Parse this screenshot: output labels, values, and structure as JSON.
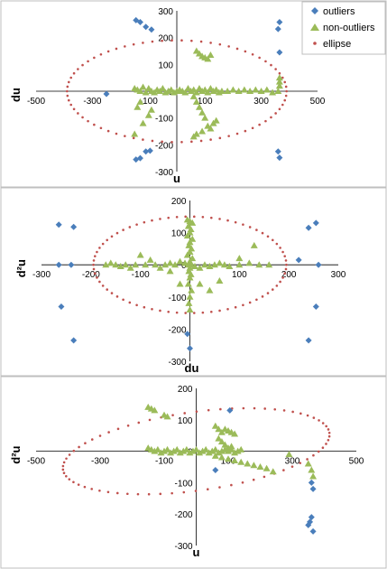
{
  "colors": {
    "outliers": "#4a7ebb",
    "non_outliers": "#9bbb59",
    "ellipse": "#c0504d",
    "axis": "#000000",
    "panel_border": "#bfbfbf"
  },
  "legend": {
    "position": "top-right",
    "items": [
      {
        "label": "outliers",
        "marker": "diamond",
        "color": "#4a7ebb"
      },
      {
        "label": "non-outliers",
        "marker": "triangle",
        "color": "#9bbb59"
      },
      {
        "label": "ellipse",
        "marker": "dot",
        "color": "#c0504d"
      }
    ]
  },
  "chart_data": [
    {
      "type": "scatter",
      "xlabel": "u",
      "ylabel": "du",
      "xlim": [
        -500,
        500
      ],
      "ylim": [
        -300,
        300
      ],
      "xticks": [
        "-500",
        "-300",
        "-100",
        "100",
        "300",
        "500"
      ],
      "yticks": [
        "300",
        "200",
        "100",
        "0",
        "-100",
        "-200",
        "-300"
      ],
      "grid": false,
      "ellipse": {
        "cx": 0,
        "cy": 0,
        "rx": 390,
        "ry": 190
      },
      "series": [
        {
          "name": "outliers",
          "marker": "diamond",
          "points": [
            [
              -145,
              265
            ],
            [
              -130,
              258
            ],
            [
              -110,
              240
            ],
            [
              -90,
              230
            ],
            [
              365,
              258
            ],
            [
              360,
              232
            ],
            [
              -145,
              -255
            ],
            [
              -130,
              -250
            ],
            [
              -110,
              -225
            ],
            [
              -95,
              -222
            ],
            [
              360,
              -225
            ],
            [
              365,
              -248
            ],
            [
              365,
              145
            ],
            [
              -250,
              -10
            ]
          ]
        },
        {
          "name": "non-outliers",
          "marker": "triangle",
          "points": [
            [
              -150,
              10
            ],
            [
              -140,
              5
            ],
            [
              -130,
              0
            ],
            [
              -120,
              15
            ],
            [
              -110,
              -5
            ],
            [
              -100,
              10
            ],
            [
              -90,
              0
            ],
            [
              -80,
              -5
            ],
            [
              -70,
              5
            ],
            [
              -60,
              0
            ],
            [
              -50,
              10
            ],
            [
              -40,
              -5
            ],
            [
              -30,
              0
            ],
            [
              -20,
              5
            ],
            [
              -10,
              -5
            ],
            [
              0,
              0
            ],
            [
              10,
              5
            ],
            [
              20,
              0
            ],
            [
              30,
              -5
            ],
            [
              40,
              10
            ],
            [
              50,
              0
            ],
            [
              60,
              5
            ],
            [
              70,
              -5
            ],
            [
              80,
              10
            ],
            [
              90,
              0
            ],
            [
              100,
              5
            ],
            [
              110,
              -5
            ],
            [
              120,
              10
            ],
            [
              130,
              0
            ],
            [
              140,
              5
            ],
            [
              150,
              -5
            ],
            [
              160,
              0
            ],
            [
              180,
              0
            ],
            [
              200,
              5
            ],
            [
              220,
              0
            ],
            [
              240,
              5
            ],
            [
              260,
              0
            ],
            [
              280,
              5
            ],
            [
              300,
              0
            ],
            [
              320,
              5
            ],
            [
              340,
              -5
            ],
            [
              360,
              0
            ],
            [
              365,
              20
            ],
            [
              365,
              35
            ],
            [
              365,
              50
            ],
            [
              70,
              150
            ],
            [
              80,
              140
            ],
            [
              90,
              130
            ],
            [
              100,
              125
            ],
            [
              110,
              120
            ],
            [
              120,
              135
            ],
            [
              60,
              -20
            ],
            [
              70,
              -40
            ],
            [
              80,
              -60
            ],
            [
              90,
              -80
            ],
            [
              100,
              -100
            ],
            [
              110,
              -130
            ],
            [
              120,
              -140
            ],
            [
              130,
              -120
            ],
            [
              140,
              -110
            ],
            [
              90,
              -150
            ],
            [
              70,
              -160
            ],
            [
              60,
              -170
            ],
            [
              -150,
              -160
            ],
            [
              -120,
              -120
            ],
            [
              -100,
              -90
            ],
            [
              -90,
              -70
            ],
            [
              -140,
              -60
            ],
            [
              -130,
              -40
            ]
          ]
        }
      ]
    },
    {
      "type": "scatter",
      "xlabel": "du",
      "ylabel": "d²u",
      "xlim": [
        -300,
        300
      ],
      "ylim": [
        -300,
        200
      ],
      "xticks": [
        "-300",
        "-200",
        "-100",
        "100",
        "200",
        "300"
      ],
      "yticks": [
        "200",
        "100",
        "0",
        "-100",
        "-200",
        "-300"
      ],
      "grid": false,
      "ellipse": {
        "cx": 0,
        "cy": 0,
        "rx": 195,
        "ry": 150
      },
      "series": [
        {
          "name": "outliers",
          "marker": "diamond",
          "points": [
            [
              -265,
              125
            ],
            [
              -235,
              118
            ],
            [
              -265,
              0
            ],
            [
              -240,
              0
            ],
            [
              -260,
              -130
            ],
            [
              -235,
              -235
            ],
            [
              -5,
              -215
            ],
            [
              0,
              -260
            ],
            [
              240,
              115
            ],
            [
              255,
              130
            ],
            [
              220,
              15
            ],
            [
              260,
              0
            ],
            [
              255,
              -130
            ],
            [
              240,
              -235
            ]
          ]
        },
        {
          "name": "non-outliers",
          "marker": "triangle",
          "points": [
            [
              -5,
              140
            ],
            [
              0,
              135
            ],
            [
              5,
              130
            ],
            [
              -3,
              120
            ],
            [
              2,
              110
            ],
            [
              0,
              100
            ],
            [
              -5,
              90
            ],
            [
              5,
              80
            ],
            [
              0,
              70
            ],
            [
              -2,
              60
            ],
            [
              3,
              50
            ],
            [
              0,
              40
            ],
            [
              -5,
              30
            ],
            [
              5,
              20
            ],
            [
              0,
              10
            ],
            [
              -3,
              0
            ],
            [
              3,
              0
            ],
            [
              0,
              -10
            ],
            [
              -2,
              -20
            ],
            [
              2,
              -30
            ],
            [
              0,
              -40
            ],
            [
              -3,
              -60
            ],
            [
              3,
              -80
            ],
            [
              0,
              -100
            ],
            [
              -2,
              -120
            ],
            [
              0,
              -140
            ],
            [
              -10,
              5
            ],
            [
              10,
              -5
            ],
            [
              -20,
              10
            ],
            [
              20,
              -10
            ],
            [
              -30,
              0
            ],
            [
              30,
              0
            ],
            [
              -40,
              5
            ],
            [
              40,
              -5
            ],
            [
              -50,
              0
            ],
            [
              50,
              0
            ],
            [
              60,
              5
            ],
            [
              70,
              0
            ],
            [
              80,
              -5
            ],
            [
              100,
              0
            ],
            [
              120,
              5
            ],
            [
              140,
              0
            ],
            [
              160,
              0
            ],
            [
              -70,
              0
            ],
            [
              -90,
              0
            ],
            [
              -110,
              0
            ],
            [
              -130,
              0
            ],
            [
              -150,
              0
            ],
            [
              -170,
              0
            ],
            [
              -160,
              5
            ],
            [
              -140,
              -5
            ],
            [
              -120,
              -10
            ],
            [
              -100,
              30
            ],
            [
              -80,
              15
            ],
            [
              -60,
              -10
            ],
            [
              130,
              60
            ],
            [
              100,
              20
            ],
            [
              60,
              -50
            ],
            [
              40,
              -80
            ],
            [
              20,
              -60
            ],
            [
              -20,
              -60
            ],
            [
              -40,
              -20
            ]
          ]
        }
      ]
    },
    {
      "type": "scatter",
      "xlabel": "u",
      "ylabel": "d²u",
      "xlim": [
        -500,
        500
      ],
      "ylim": [
        -300,
        200
      ],
      "xticks": [
        "-500",
        "-300",
        "-100",
        "100",
        "300",
        "500"
      ],
      "yticks": [
        "200",
        "100",
        "0",
        "-100",
        "-200",
        "-300"
      ],
      "grid": false,
      "ellipse": {
        "cx": 0,
        "cy": 0,
        "rx": 420,
        "ry": 125,
        "rotation_deg": 8
      },
      "series": [
        {
          "name": "outliers",
          "marker": "diamond",
          "points": [
            [
              105,
              130
            ],
            [
              360,
              -100
            ],
            [
              365,
              -120
            ],
            [
              360,
              -210
            ],
            [
              355,
              -225
            ],
            [
              350,
              -235
            ],
            [
              365,
              -255
            ],
            [
              60,
              -60
            ]
          ]
        },
        {
          "name": "non-outliers",
          "marker": "triangle",
          "points": [
            [
              -150,
              140
            ],
            [
              -140,
              135
            ],
            [
              -130,
              130
            ],
            [
              -100,
              115
            ],
            [
              -90,
              110
            ],
            [
              -150,
              10
            ],
            [
              -140,
              5
            ],
            [
              -130,
              0
            ],
            [
              -120,
              5
            ],
            [
              -110,
              -5
            ],
            [
              -100,
              0
            ],
            [
              -90,
              5
            ],
            [
              -80,
              -5
            ],
            [
              -70,
              0
            ],
            [
              -60,
              5
            ],
            [
              -50,
              -5
            ],
            [
              -40,
              0
            ],
            [
              -30,
              5
            ],
            [
              -20,
              -5
            ],
            [
              -10,
              0
            ],
            [
              0,
              5
            ],
            [
              10,
              -5
            ],
            [
              20,
              0
            ],
            [
              30,
              5
            ],
            [
              40,
              -5
            ],
            [
              50,
              0
            ],
            [
              60,
              5
            ],
            [
              70,
              -5
            ],
            [
              80,
              0
            ],
            [
              90,
              5
            ],
            [
              100,
              0
            ],
            [
              110,
              5
            ],
            [
              120,
              -5
            ],
            [
              130,
              0
            ],
            [
              140,
              5
            ],
            [
              60,
              80
            ],
            [
              70,
              70
            ],
            [
              80,
              60
            ],
            [
              90,
              70
            ],
            [
              100,
              65
            ],
            [
              110,
              60
            ],
            [
              120,
              55
            ],
            [
              70,
              40
            ],
            [
              80,
              30
            ],
            [
              90,
              20
            ],
            [
              100,
              10
            ],
            [
              110,
              15
            ],
            [
              60,
              -15
            ],
            [
              80,
              -20
            ],
            [
              100,
              -25
            ],
            [
              120,
              -30
            ],
            [
              140,
              -35
            ],
            [
              160,
              -40
            ],
            [
              180,
              -45
            ],
            [
              200,
              -50
            ],
            [
              220,
              -55
            ],
            [
              240,
              -65
            ],
            [
              290,
              -10
            ],
            [
              350,
              -40
            ],
            [
              360,
              -60
            ],
            [
              365,
              -80
            ]
          ]
        }
      ]
    }
  ]
}
